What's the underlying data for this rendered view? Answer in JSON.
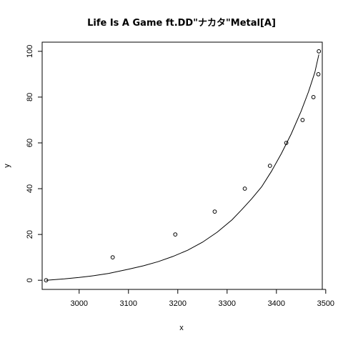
{
  "chart_data": {
    "type": "scatter",
    "title": "Life Is A Game ft.DD\"ナカタ\"Metal[A]",
    "xlabel": "x",
    "ylabel": "y",
    "xlim": [
      2925,
      3493
    ],
    "ylim": [
      -4,
      104
    ],
    "x_ticks": [
      3000,
      3100,
      3200,
      3300,
      3400,
      3500
    ],
    "y_ticks": [
      0,
      20,
      40,
      60,
      80,
      100
    ],
    "grid": false,
    "series": [
      {
        "marker": "open-circle",
        "x": [
          2933,
          3068,
          3195,
          3275,
          3336,
          3387,
          3420,
          3453,
          3475,
          3485,
          3486
        ],
        "y": [
          0,
          10,
          20,
          30,
          40,
          50,
          60,
          70,
          80,
          90,
          100
        ]
      }
    ],
    "fit_curve": {
      "x": [
        2933,
        2970,
        3000,
        3030,
        3060,
        3100,
        3130,
        3160,
        3190,
        3220,
        3250,
        3280,
        3310,
        3330,
        3350,
        3370,
        3390,
        3410,
        3430,
        3450,
        3465,
        3478,
        3486
      ],
      "y": [
        0,
        0.6,
        1.2,
        2.0,
        3.0,
        4.8,
        6.3,
        8.1,
        10.4,
        13.1,
        16.6,
        21.0,
        26.4,
        30.9,
        35.6,
        40.8,
        47.6,
        55.3,
        63.9,
        73.8,
        82.3,
        90.8,
        98.6
      ]
    }
  }
}
